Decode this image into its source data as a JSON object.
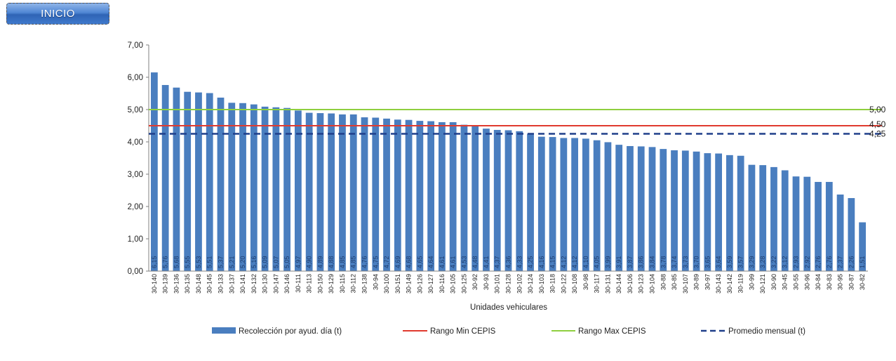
{
  "header": {
    "inicio_label": "INICIO"
  },
  "colors": {
    "bar": "#4a7ebf",
    "min": "#e03a2e",
    "max": "#8fcf3f",
    "avg": "#1f3f8a"
  },
  "chart_data": {
    "type": "bar",
    "xlabel": "Unidades vehiculares",
    "ylim": [
      0,
      7
    ],
    "yticks": [
      "0,00",
      "1,00",
      "2,00",
      "3,00",
      "4,00",
      "5,00",
      "6,00",
      "7,00"
    ],
    "categories": [
      "30-140",
      "30-139",
      "30-136",
      "30-135",
      "30-148",
      "30-145",
      "30-133",
      "30-137",
      "30-141",
      "30-132",
      "30-130",
      "30-147",
      "30-146",
      "30-111",
      "30-113",
      "30-150",
      "30-129",
      "30-115",
      "30-112",
      "30-138",
      "30-94",
      "30-100",
      "30-151",
      "30-149",
      "30-126",
      "30-127",
      "30-116",
      "30-105",
      "30-125",
      "30-92",
      "30-93",
      "30-101",
      "30-128",
      "30-102",
      "30-124",
      "30-103",
      "30-118",
      "30-122",
      "30-108",
      "30-98",
      "30-117",
      "30-131",
      "30-144",
      "30-106",
      "30-123",
      "30-104",
      "30-88",
      "30-85",
      "30-107",
      "30-89",
      "30-97",
      "30-143",
      "30-142",
      "30-119",
      "30-99",
      "30-121",
      "30-90",
      "30-45",
      "30-55",
      "30-96",
      "30-84",
      "30-83",
      "30-95",
      "30-87",
      "30-82"
    ],
    "labels": [
      "6,15",
      "5,76",
      "5,68",
      "5,55",
      "5,53",
      "5,51",
      "5,37",
      "5,21",
      "5,20",
      "5,16",
      "5,09",
      "5,07",
      "5,05",
      "4,97",
      "4,90",
      "4,89",
      "4,88",
      "4,85",
      "4,85",
      "4,76",
      "4,75",
      "4,72",
      "4,69",
      "4,68",
      "4,65",
      "4,64",
      "4,61",
      "4,61",
      "4,53",
      "4,48",
      "4,41",
      "4,37",
      "4,36",
      "4,33",
      "4,25",
      "4,16",
      "4,15",
      "4,12",
      "4,12",
      "4,10",
      "4,05",
      "3,99",
      "3,91",
      "3,87",
      "3,86",
      "3,84",
      "3,78",
      "3,74",
      "3,73",
      "3,70",
      "3,65",
      "3,64",
      "3,59",
      "3,57",
      "3,29",
      "3,28",
      "3,22",
      "3,12",
      "2,93",
      "2,92",
      "2,76",
      "2,76",
      "2,37",
      "2,26",
      "1,51"
    ],
    "series": [
      {
        "name": "Recolección por ayud. día (t)",
        "type": "bar",
        "values": [
          6.15,
          5.76,
          5.68,
          5.55,
          5.53,
          5.51,
          5.37,
          5.21,
          5.2,
          5.16,
          5.09,
          5.07,
          5.05,
          4.97,
          4.9,
          4.89,
          4.88,
          4.85,
          4.85,
          4.76,
          4.75,
          4.72,
          4.69,
          4.68,
          4.65,
          4.64,
          4.61,
          4.61,
          4.53,
          4.48,
          4.41,
          4.37,
          4.36,
          4.33,
          4.25,
          4.16,
          4.15,
          4.12,
          4.12,
          4.1,
          4.05,
          3.99,
          3.91,
          3.87,
          3.86,
          3.84,
          3.78,
          3.74,
          3.73,
          3.7,
          3.65,
          3.64,
          3.59,
          3.57,
          3.29,
          3.28,
          3.22,
          3.12,
          2.93,
          2.92,
          2.76,
          2.76,
          2.37,
          2.26,
          1.51
        ]
      },
      {
        "name": "Rango Min CEPIS",
        "type": "line",
        "value": 4.5,
        "label": "4,50"
      },
      {
        "name": "Rango Max CEPIS",
        "type": "line",
        "value": 5.0,
        "label": "5,00"
      },
      {
        "name": "Promedio mensual (t)",
        "type": "dashed-line",
        "value": 4.25,
        "label": "4,25"
      }
    ],
    "legend_position": "bottom",
    "grid": false
  }
}
